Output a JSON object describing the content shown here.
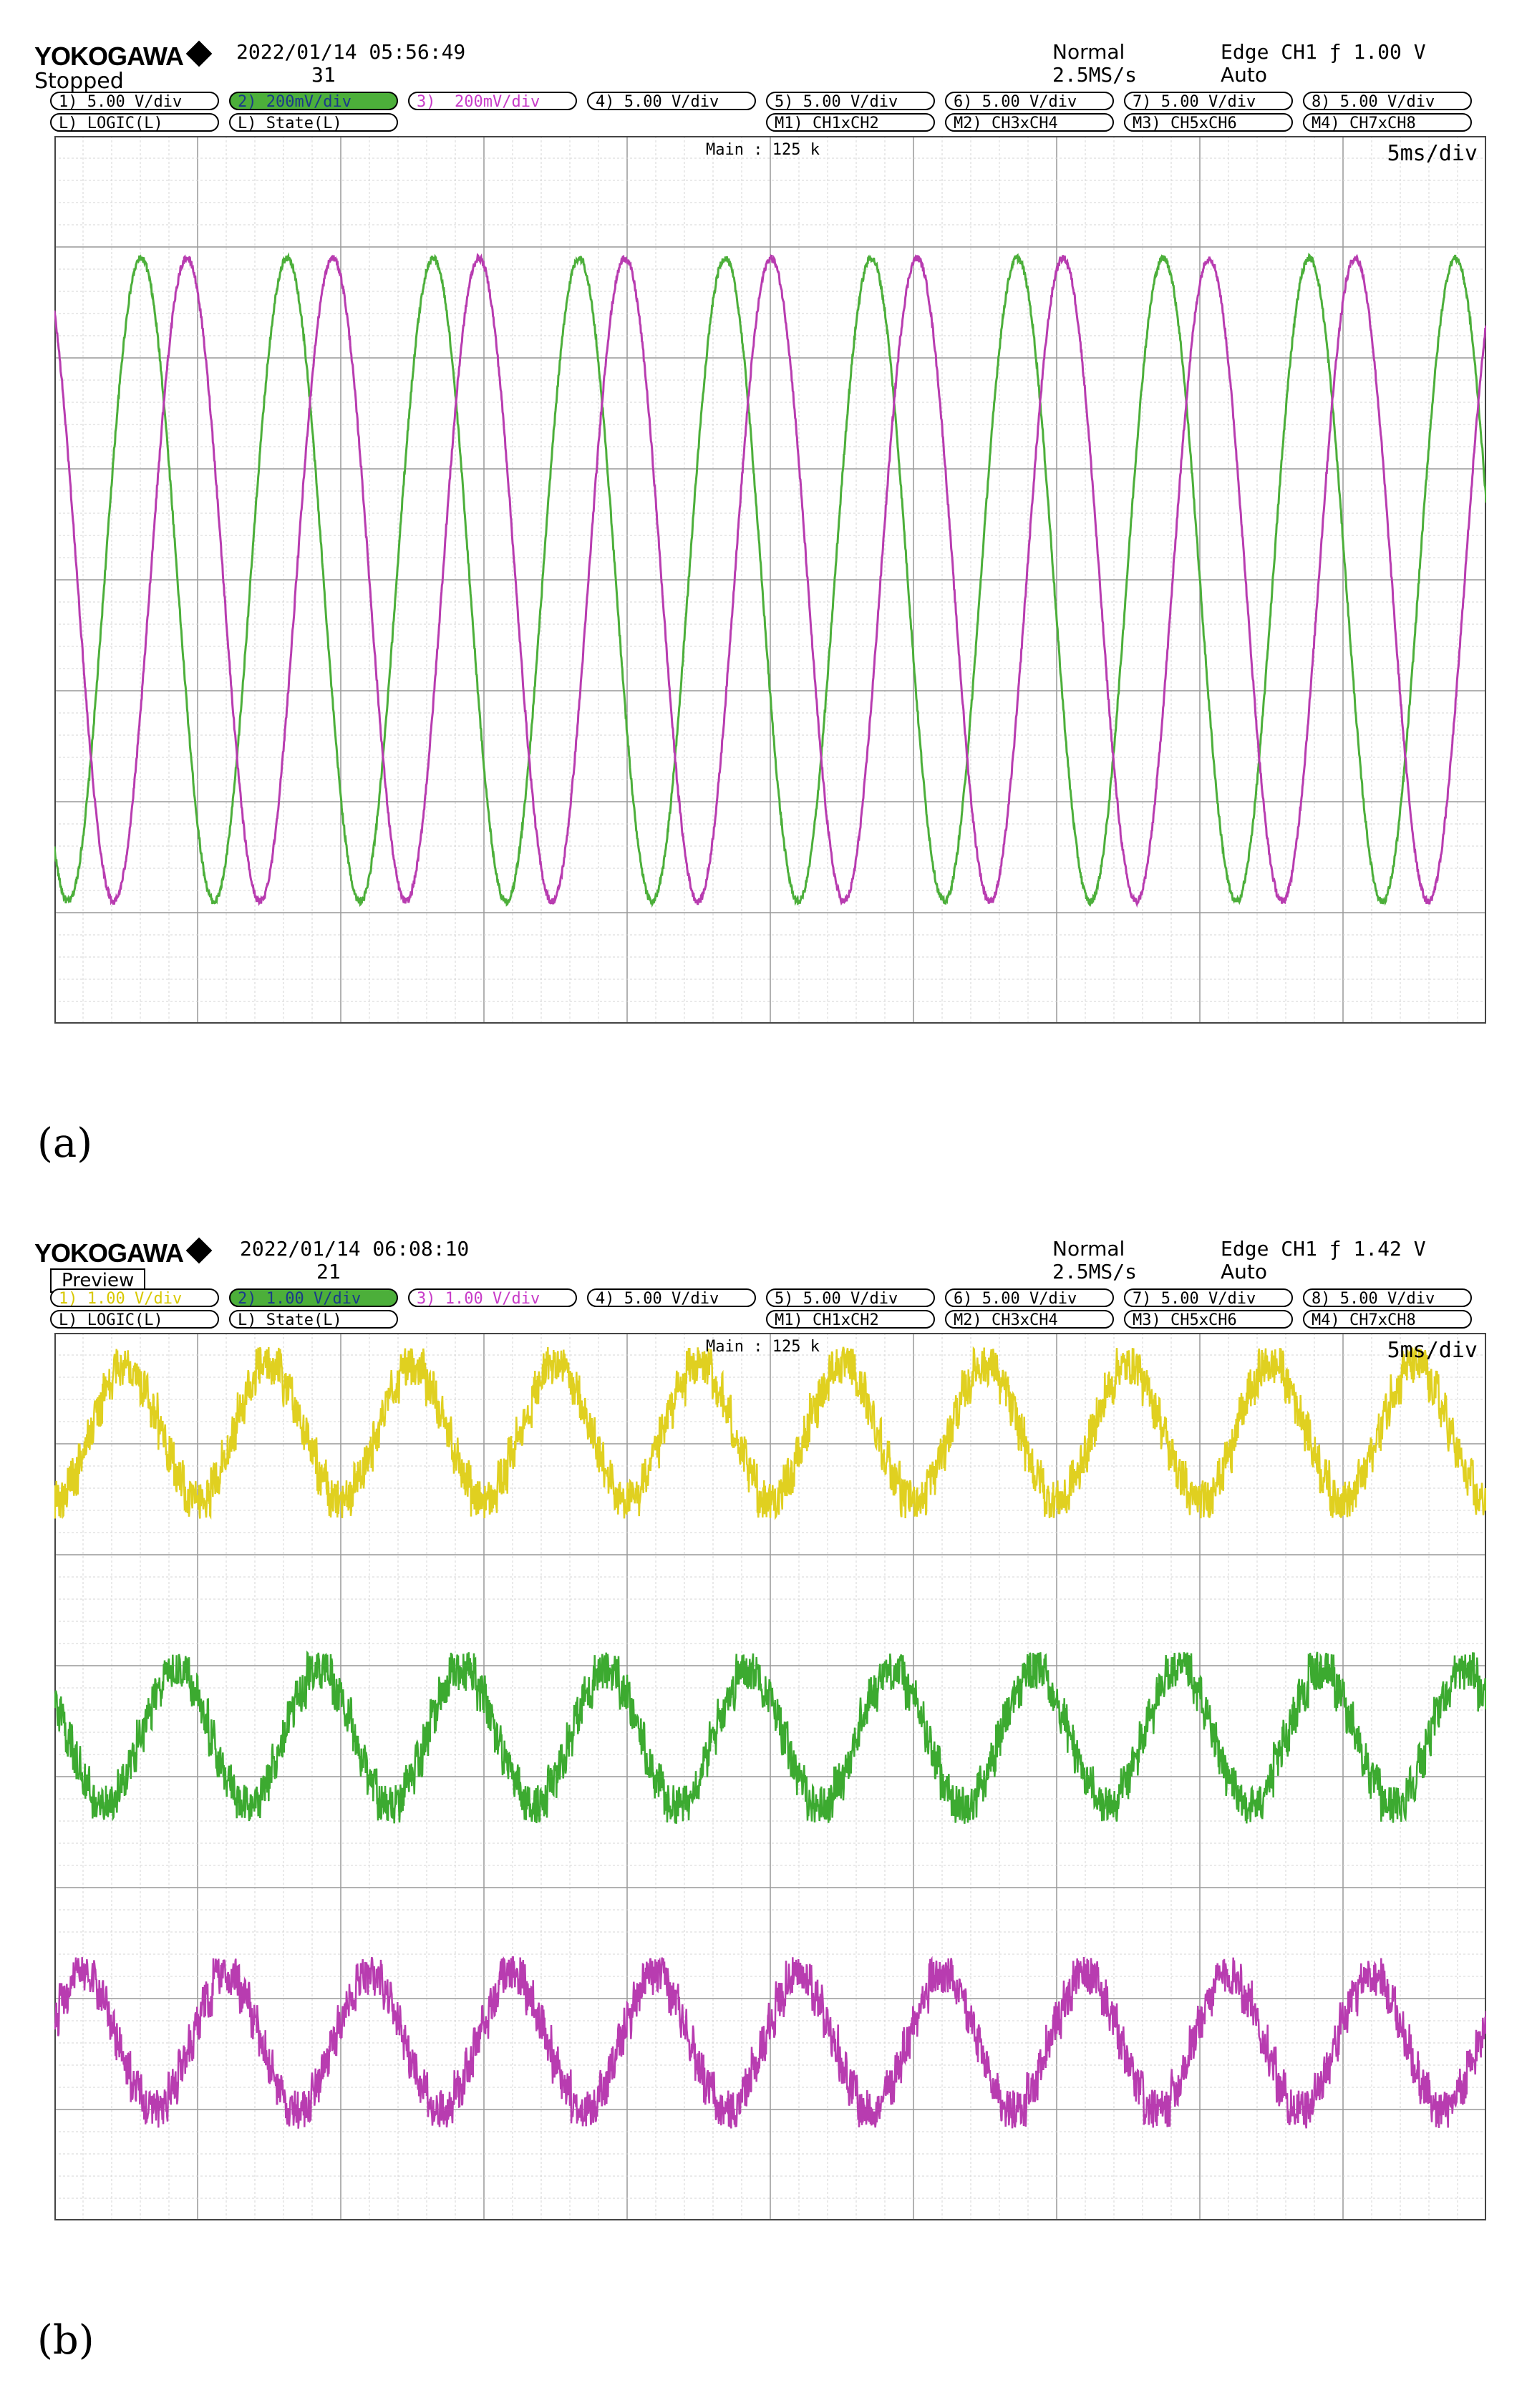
{
  "panels": [
    {
      "caption": "(a)",
      "brand": "YOKOGAWA",
      "datetime": "2022/01/14 05:56:49",
      "count": "31",
      "status_label": "Stopped",
      "acq_mode": "Normal",
      "sample_rate": "2.5MS/s",
      "trigger": "Edge CH1 ƒ 1.00 V",
      "trigger_mode": "Auto",
      "channels_row1": [
        {
          "label": "1) 5.00 V/div",
          "color": "#ffffff",
          "text_color": "#000000"
        },
        {
          "label": "2) 200mV/div",
          "color": "#4caf3a",
          "text_color": "#1a3a8a"
        },
        {
          "label": "3)  200mV/div",
          "color": "#ffffff",
          "text_color": "#c83cc8"
        },
        {
          "label": "4) 5.00 V/div",
          "color": "#ffffff",
          "text_color": "#000000"
        },
        {
          "label": "5) 5.00 V/div",
          "color": "#ffffff",
          "text_color": "#000000"
        },
        {
          "label": "6) 5.00 V/div",
          "color": "#ffffff",
          "text_color": "#000000"
        },
        {
          "label": "7) 5.00 V/div",
          "color": "#ffffff",
          "text_color": "#000000"
        },
        {
          "label": "8) 5.00 V/div",
          "color": "#ffffff",
          "text_color": "#000000"
        }
      ],
      "channels_row2": [
        {
          "label": "L) LOGIC(L)"
        },
        {
          "label": "L) State(L)"
        },
        {
          "label": "M1) CH1xCH2"
        },
        {
          "label": "M2) CH3xCH4"
        },
        {
          "label": "M3) CH5xCH6"
        },
        {
          "label": "M4) CH7xCH8"
        }
      ],
      "record_length": "Main : 125 k",
      "timebase": "5ms/div",
      "chart_data": {
        "type": "line",
        "xlabel": "",
        "ylabel": "",
        "x_divisions": 10,
        "y_divisions": 8,
        "timebase_ms_per_div": 5,
        "xlim_ms": [
          0,
          50
        ],
        "grid": true,
        "series": [
          {
            "color": "#4caf3a",
            "period_ms": 5.1,
            "phase_div": 0.35,
            "amp_div": 2.9,
            "offset_div": 0.0,
            "noise": "low",
            "shape": "sine"
          },
          {
            "color": "#b83cb0",
            "period_ms": 5.1,
            "phase_div": 0.67,
            "amp_div": 2.9,
            "offset_div": 0.0,
            "noise": "low",
            "shape": "sine"
          }
        ]
      }
    },
    {
      "caption": "(b)",
      "brand": "YOKOGAWA",
      "datetime": "2022/01/14 06:08:10",
      "count": "21",
      "status_label": "Preview",
      "acq_mode": "Normal",
      "sample_rate": "2.5MS/s",
      "trigger": "Edge CH1 ƒ 1.42 V",
      "trigger_mode": "Auto",
      "channels_row1": [
        {
          "label": "1) 1.00 V/div",
          "color": "#ffffff",
          "text_color": "#d8c800"
        },
        {
          "label": "2) 1.00 V/div",
          "color": "#4caf3a",
          "text_color": "#1a3a8a"
        },
        {
          "label": "3) 1.00 V/div",
          "color": "#ffffff",
          "text_color": "#c83cc8"
        },
        {
          "label": "4) 5.00 V/div",
          "color": "#ffffff",
          "text_color": "#000000"
        },
        {
          "label": "5) 5.00 V/div",
          "color": "#ffffff",
          "text_color": "#000000"
        },
        {
          "label": "6) 5.00 V/div",
          "color": "#ffffff",
          "text_color": "#000000"
        },
        {
          "label": "7) 5.00 V/div",
          "color": "#ffffff",
          "text_color": "#000000"
        },
        {
          "label": "8) 5.00 V/div",
          "color": "#ffffff",
          "text_color": "#000000"
        }
      ],
      "channels_row2": [
        {
          "label": "L) LOGIC(L)"
        },
        {
          "label": "L) State(L)"
        },
        {
          "label": "M1) CH1xCH2"
        },
        {
          "label": "M2) CH3xCH4"
        },
        {
          "label": "M3) CH5xCH6"
        },
        {
          "label": "M4) CH7xCH8"
        }
      ],
      "record_length": "Main : 125 k",
      "timebase": "5ms/div",
      "chart_data": {
        "type": "line",
        "xlabel": "",
        "ylabel": "",
        "x_divisions": 10,
        "y_divisions": 8,
        "timebase_ms_per_div": 5,
        "xlim_ms": [
          0,
          50
        ],
        "grid": true,
        "series": [
          {
            "color": "#e0d020",
            "period_ms": 5.0,
            "phase_div": 0.25,
            "amp_div": 0.6,
            "offset_div": 3.1,
            "noise": "high",
            "shape": "stepped-sine"
          },
          {
            "color": "#3caa30",
            "period_ms": 5.0,
            "phase_div": 0.6,
            "amp_div": 0.6,
            "offset_div": 0.35,
            "noise": "high",
            "shape": "stepped-sine"
          },
          {
            "color": "#b83cb0",
            "period_ms": 5.0,
            "phase_div": 0.95,
            "amp_div": 0.6,
            "offset_div": -2.4,
            "noise": "high",
            "shape": "stepped-sine"
          }
        ]
      }
    }
  ]
}
